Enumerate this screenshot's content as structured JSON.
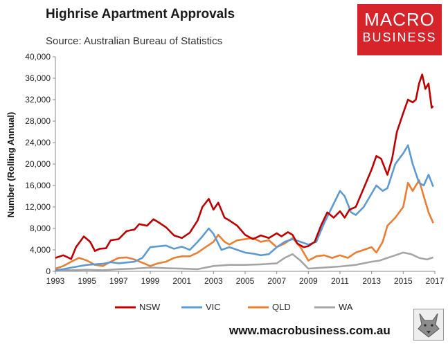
{
  "header": {
    "title": "Highrise Apartment Approvals",
    "source": "Source: Australian Bureau of Statistics"
  },
  "logo": {
    "top": "MACRO",
    "bottom": "BUSINESS"
  },
  "footer": {
    "url": "www.macrobusiness.com.au"
  },
  "colors": {
    "NSW": "#c00000",
    "VIC": "#5b9bd5",
    "QLD": "#ed7d31",
    "WA": "#a5a5a5",
    "logo_bg": "#d7242a"
  },
  "chart_data": {
    "type": "line",
    "title": "Highrise Apartment Approvals",
    "xlabel": "",
    "ylabel": "Number (Rolling Annual)",
    "xlim": [
      1993,
      2017
    ],
    "ylim": [
      0,
      40000
    ],
    "x_ticks": [
      "1993",
      "1995",
      "1997",
      "1999",
      "2001",
      "2003",
      "2005",
      "2007",
      "2009",
      "2011",
      "2013",
      "2015",
      "2017"
    ],
    "y_ticks": [
      "0",
      "4,000",
      "8,000",
      "12,000",
      "16,000",
      "20,000",
      "24,000",
      "28,000",
      "32,000",
      "36,000",
      "40,000"
    ],
    "legend_position": "bottom",
    "grid": false,
    "series": [
      {
        "name": "NSW",
        "color": "#c00000",
        "x": [
          1993,
          1993.5,
          1994,
          1994.3,
          1994.8,
          1995.2,
          1995.5,
          1995.8,
          1996.2,
          1996.5,
          1997,
          1997.5,
          1998,
          1998.3,
          1998.8,
          1999.2,
          1999.6,
          2000,
          2000.5,
          2001,
          2001.5,
          2002,
          2002.3,
          2002.7,
          2003,
          2003.3,
          2003.7,
          2004,
          2004.5,
          2005,
          2005.5,
          2006,
          2006.5,
          2007,
          2007.3,
          2007.7,
          2008,
          2008.3,
          2008.7,
          2009,
          2009.4,
          2009.8,
          2010.2,
          2010.6,
          2011,
          2011.3,
          2011.6,
          2012,
          2012.5,
          2013,
          2013.3,
          2013.6,
          2014,
          2014.3,
          2014.6,
          2015,
          2015.3,
          2015.6,
          2015.8,
          2016,
          2016.2,
          2016.4,
          2016.6,
          2016.8,
          2016.9
        ],
        "values": [
          2500,
          3000,
          2300,
          4500,
          6500,
          5500,
          3800,
          4200,
          4300,
          5800,
          6000,
          7500,
          7800,
          8800,
          8500,
          9700,
          9000,
          8200,
          6700,
          6200,
          7200,
          9500,
          12000,
          13500,
          11500,
          12800,
          10000,
          9500,
          8500,
          6800,
          6000,
          6700,
          6200,
          7100,
          6500,
          7300,
          6800,
          5200,
          4500,
          4700,
          5500,
          8500,
          11000,
          10000,
          11200,
          10000,
          11500,
          12000,
          15500,
          19000,
          21500,
          21000,
          18000,
          21000,
          26000,
          29500,
          32000,
          31500,
          32000,
          35000,
          36700,
          34000,
          35000,
          30500,
          30800
        ]
      },
      {
        "name": "VIC",
        "color": "#5b9bd5",
        "x": [
          1993,
          1993.5,
          1994,
          1995,
          1996,
          1996.5,
          1997,
          1998,
          1998.5,
          1999,
          2000,
          2000.5,
          2001,
          2001.5,
          2002,
          2002.3,
          2002.7,
          2003,
          2003.5,
          2004,
          2005,
          2005.5,
          2006,
          2006.5,
          2007,
          2007.5,
          2008,
          2008.5,
          2009,
          2009.5,
          2010,
          2010.5,
          2011,
          2011.3,
          2011.7,
          2012,
          2012.5,
          2013,
          2013.3,
          2013.7,
          2014,
          2014.5,
          2015,
          2015.3,
          2015.6,
          2016,
          2016.3,
          2016.6,
          2016.9
        ],
        "values": [
          200,
          400,
          700,
          1200,
          1400,
          1700,
          1500,
          1800,
          2500,
          4500,
          4800,
          4200,
          4600,
          4000,
          5500,
          6500,
          8000,
          7000,
          4000,
          4500,
          3500,
          3300,
          3000,
          3200,
          4500,
          5500,
          6000,
          5500,
          5000,
          5500,
          9000,
          12000,
          15000,
          14000,
          11000,
          10500,
          12000,
          14500,
          16000,
          15000,
          15500,
          20000,
          22000,
          23500,
          20000,
          16500,
          16000,
          18000,
          15800
        ]
      },
      {
        "name": "QLD",
        "color": "#ed7d31",
        "x": [
          1993,
          1993.5,
          1994,
          1994.5,
          1995,
          1995.5,
          1996,
          1996.5,
          1997,
          1997.5,
          1998,
          1999,
          1999.5,
          2000,
          2000.5,
          2001,
          2001.5,
          2002,
          2002.5,
          2003,
          2003.3,
          2003.7,
          2004,
          2004.5,
          2005,
          2005.5,
          2006,
          2006.5,
          2007,
          2007.5,
          2008,
          2008.5,
          2009,
          2009.5,
          2010,
          2010.5,
          2011,
          2011.5,
          2012,
          2012.5,
          2013,
          2013.3,
          2013.7,
          2014,
          2014.5,
          2015,
          2015.3,
          2015.6,
          2016,
          2016.3,
          2016.6,
          2016.9
        ],
        "values": [
          500,
          1000,
          1800,
          2500,
          2000,
          1200,
          1000,
          1800,
          2500,
          2600,
          2200,
          1000,
          1500,
          1800,
          2500,
          2800,
          2800,
          3500,
          4500,
          5500,
          6800,
          5500,
          5000,
          5800,
          6000,
          6200,
          5500,
          5800,
          4500,
          5200,
          6200,
          4500,
          2000,
          2800,
          3000,
          2500,
          3000,
          2500,
          3500,
          4000,
          4500,
          3500,
          5500,
          8500,
          10000,
          12000,
          16500,
          15000,
          17000,
          14000,
          11000,
          9000
        ]
      },
      {
        "name": "WA",
        "color": "#a5a5a5",
        "x": [
          1993,
          1994,
          1995,
          1996,
          1997,
          1998,
          1999,
          2000,
          2001,
          2002,
          2003,
          2004,
          2005,
          2006,
          2007,
          2007.5,
          2008,
          2008.5,
          2009,
          2010,
          2011,
          2012,
          2013,
          2013.5,
          2014,
          2014.5,
          2015,
          2015.5,
          2016,
          2016.5,
          2016.9
        ],
        "values": [
          300,
          200,
          300,
          200,
          400,
          500,
          700,
          600,
          500,
          400,
          1000,
          1200,
          1200,
          1300,
          1500,
          2500,
          3200,
          2000,
          500,
          700,
          900,
          1200,
          1800,
          2000,
          2500,
          3000,
          3500,
          3200,
          2500,
          2200,
          2600
        ]
      }
    ]
  }
}
